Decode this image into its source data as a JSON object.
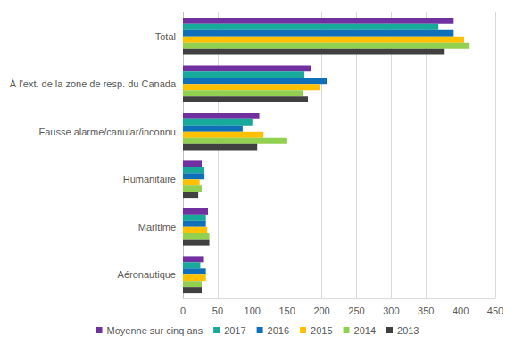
{
  "chart_data": {
    "type": "bar",
    "orientation": "horizontal",
    "categories": [
      "Total",
      "À l'ext. de la zone de resp. du Canada",
      "Fausse alarme/canular/inconnu",
      "Humanitaire",
      "Maritime",
      "Aéronautique"
    ],
    "series": [
      {
        "name": "Moyenne sur cinq ans",
        "color": "#7030a0",
        "values": [
          390,
          185,
          110,
          27,
          36,
          29
        ]
      },
      {
        "name": "2017",
        "color": "#17a99a",
        "values": [
          368,
          175,
          100,
          31,
          33,
          25
        ]
      },
      {
        "name": "2016",
        "color": "#0f6fb8",
        "values": [
          390,
          207,
          86,
          31,
          33,
          33
        ]
      },
      {
        "name": "2015",
        "color": "#ffc000",
        "values": [
          405,
          197,
          116,
          24,
          35,
          33
        ]
      },
      {
        "name": "2014",
        "color": "#92d050",
        "values": [
          413,
          173,
          149,
          27,
          38,
          27
        ]
      },
      {
        "name": "2013",
        "color": "#404040",
        "values": [
          377,
          180,
          107,
          22,
          38,
          27
        ]
      }
    ],
    "xlim": [
      0,
      450
    ],
    "xticks": [
      0,
      50,
      100,
      150,
      200,
      250,
      300,
      350,
      400,
      450
    ],
    "grid": true,
    "legend": "bottom"
  }
}
